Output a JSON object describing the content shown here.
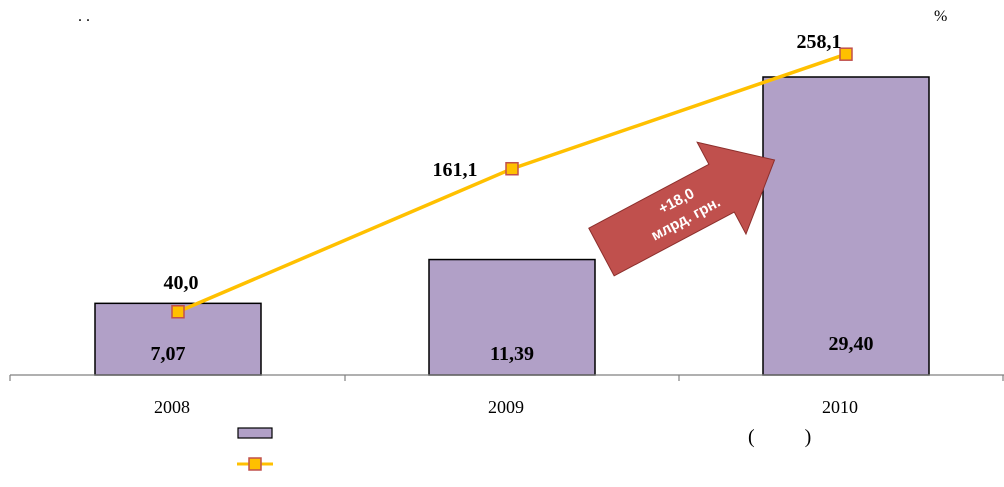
{
  "header": {
    "dots": ".      .",
    "unit": "%"
  },
  "colors": {
    "bar_fill": "#b1a0c7",
    "bar_stroke": "#000000",
    "line": "#ffc000",
    "marker_fill": "#ffc000",
    "marker_stroke": "#c0504d",
    "arrow_fill": "#c0504d",
    "axis": "#808080"
  },
  "chart_data": {
    "type": "bar",
    "categories": [
      "2008",
      "2009",
      "2010"
    ],
    "series": [
      {
        "kind": "bar",
        "values": [
          7.07,
          11.39,
          29.4
        ],
        "labels": [
          "7,07",
          "11,39",
          "29,40"
        ]
      },
      {
        "kind": "line",
        "values": [
          40.0,
          161.1,
          258.1
        ],
        "labels": [
          "40,0",
          "161,1",
          "258,1"
        ]
      }
    ],
    "annotation": {
      "line1": "+18,0",
      "line2": "млрд. грн."
    },
    "legend": {
      "placement": "bottom",
      "paren": "(          )"
    }
  }
}
